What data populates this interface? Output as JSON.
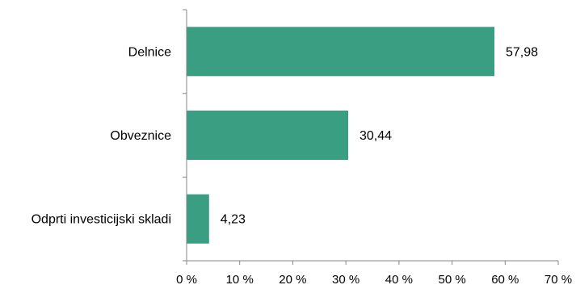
{
  "chart_data": {
    "type": "bar",
    "orientation": "horizontal",
    "categories": [
      "Delnice",
      "Obveznice",
      "Odprti investicijski skladi"
    ],
    "values": [
      57.98,
      30.44,
      4.23
    ],
    "value_labels": [
      "57,98",
      "30,44",
      "4,23"
    ],
    "xlim": [
      0,
      70
    ],
    "x_ticks": [
      0,
      10,
      20,
      30,
      40,
      50,
      60,
      70
    ],
    "x_tick_labels": [
      "0 %",
      "10 %",
      "20 %",
      "30 %",
      "40 %",
      "50 %",
      "60 %",
      "70 %"
    ],
    "bar_color": "#3a9f82",
    "grid": false,
    "legend": "none"
  }
}
